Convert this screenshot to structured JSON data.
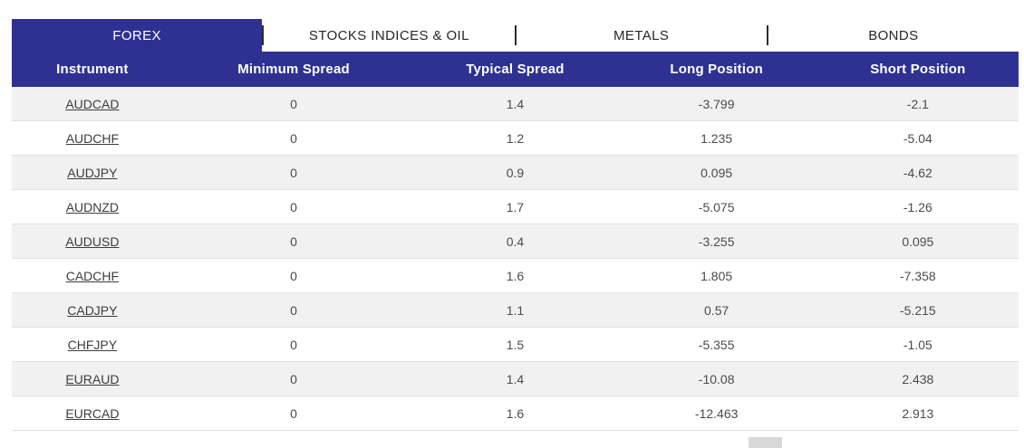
{
  "tabs": [
    {
      "label": "FOREX",
      "active": true
    },
    {
      "label": "STOCKS INDICES & OIL",
      "active": false
    },
    {
      "label": "METALS",
      "active": false
    },
    {
      "label": "BONDS",
      "active": false
    }
  ],
  "table": {
    "columns": [
      "Instrument",
      "Minimum Spread",
      "Typical Spread",
      "Long Position",
      "Short Position"
    ],
    "rows": [
      {
        "instrument": "AUDCAD",
        "minimum_spread": "0",
        "typical_spread": "1.4",
        "long_position": "-3.799",
        "short_position": "-2.1"
      },
      {
        "instrument": "AUDCHF",
        "minimum_spread": "0",
        "typical_spread": "1.2",
        "long_position": "1.235",
        "short_position": "-5.04"
      },
      {
        "instrument": "AUDJPY",
        "minimum_spread": "0",
        "typical_spread": "0.9",
        "long_position": "0.095",
        "short_position": "-4.62"
      },
      {
        "instrument": "AUDNZD",
        "minimum_spread": "0",
        "typical_spread": "1.7",
        "long_position": "-5.075",
        "short_position": "-1.26"
      },
      {
        "instrument": "AUDUSD",
        "minimum_spread": "0",
        "typical_spread": "0.4",
        "long_position": "-3.255",
        "short_position": "0.095"
      },
      {
        "instrument": "CADCHF",
        "minimum_spread": "0",
        "typical_spread": "1.6",
        "long_position": "1.805",
        "short_position": "-7.358"
      },
      {
        "instrument": "CADJPY",
        "minimum_spread": "0",
        "typical_spread": "1.1",
        "long_position": "0.57",
        "short_position": "-5.215"
      },
      {
        "instrument": "CHFJPY",
        "minimum_spread": "0",
        "typical_spread": "1.5",
        "long_position": "-5.355",
        "short_position": "-1.05"
      },
      {
        "instrument": "EURAUD",
        "minimum_spread": "0",
        "typical_spread": "1.4",
        "long_position": "-10.08",
        "short_position": "2.438"
      },
      {
        "instrument": "EURCAD",
        "minimum_spread": "0",
        "typical_spread": "1.6",
        "long_position": "-12.463",
        "short_position": "2.913"
      }
    ]
  },
  "colors": {
    "accent": "#2e3192",
    "row_alt": "#f1f1f2",
    "row_border": "#e1e1e5",
    "cell_text": "#4b4b4d",
    "link": "#3c3c3c",
    "tab_text": "#262626",
    "scroll_thumb": "#d8d8d8"
  }
}
